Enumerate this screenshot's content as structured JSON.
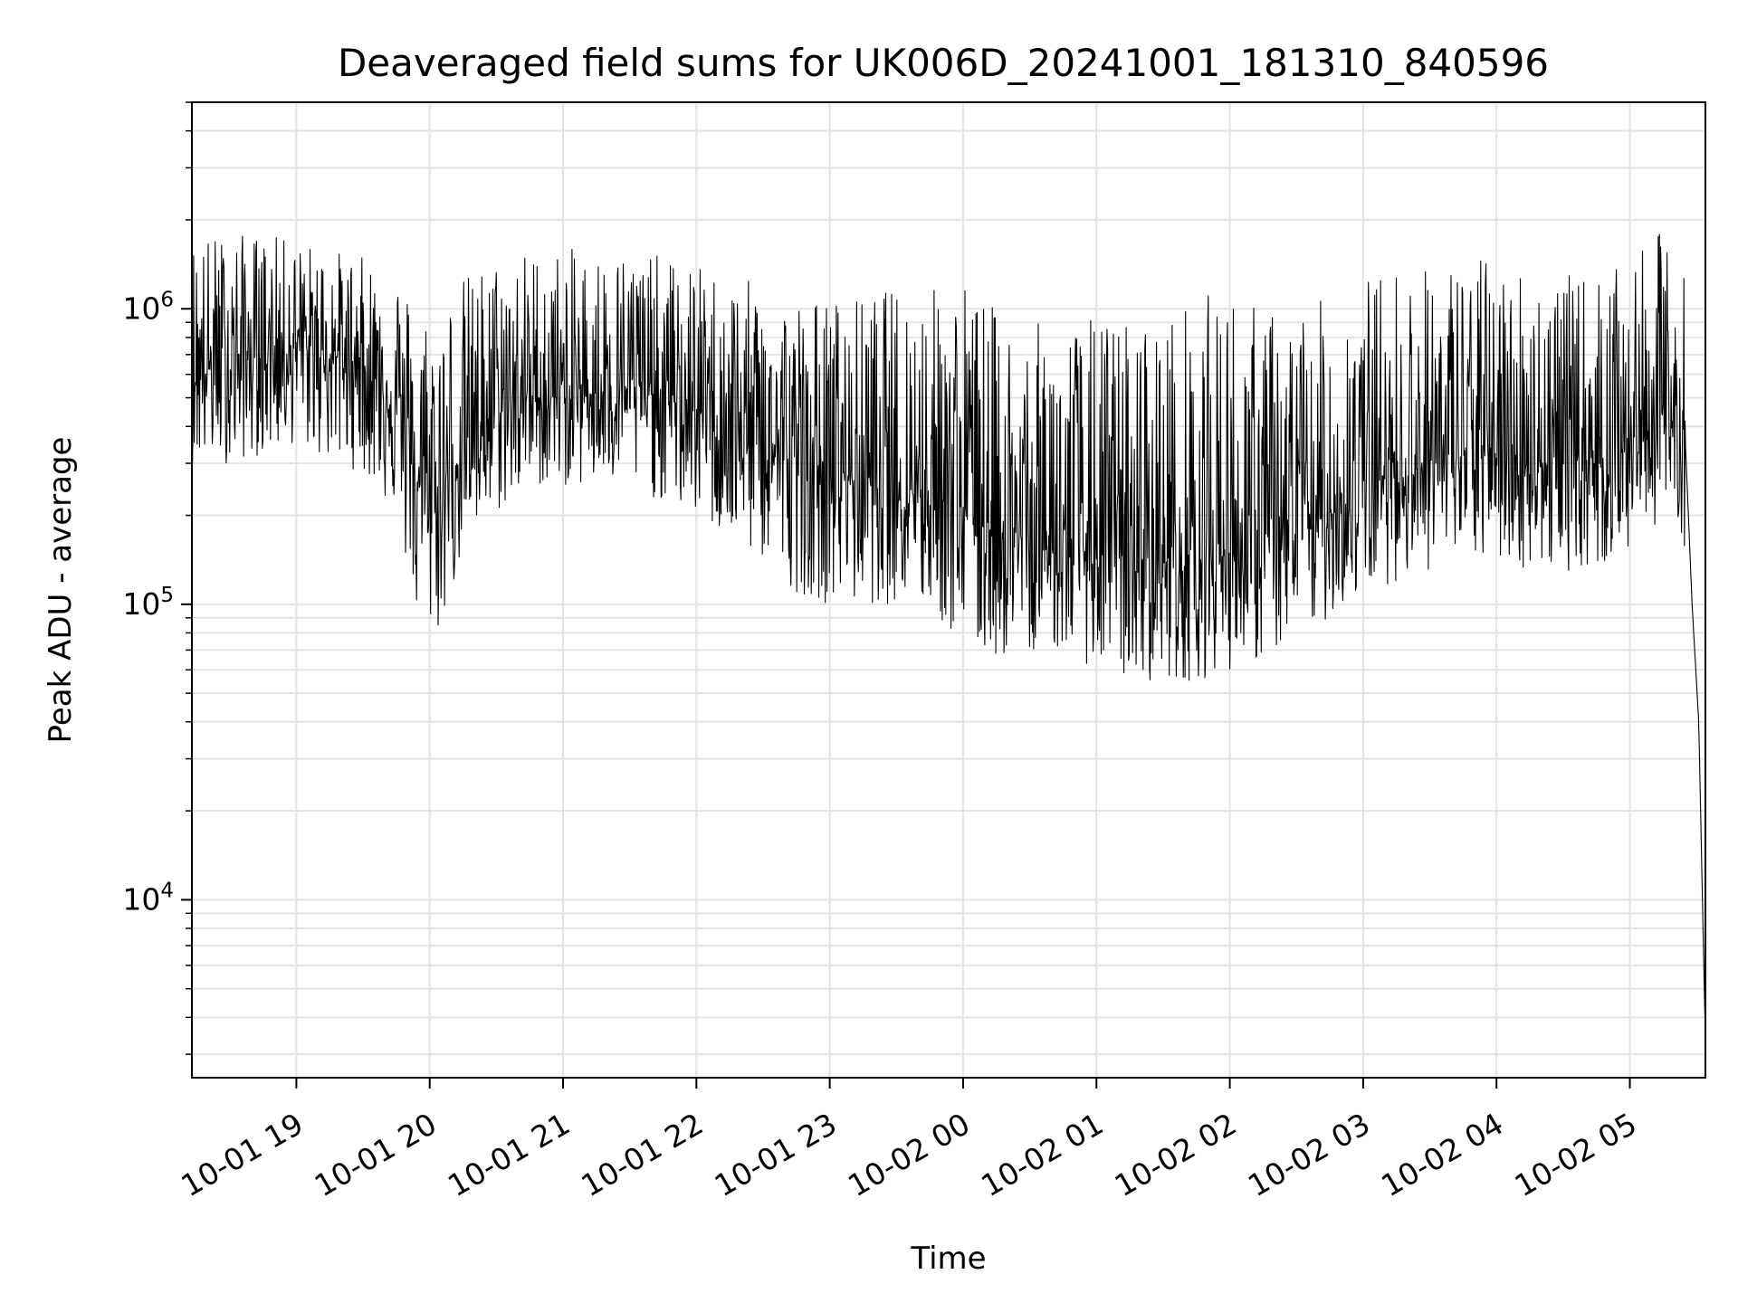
{
  "chart_data": {
    "type": "line",
    "title": "Deaveraged field sums for UK006D_20241001_181310_840596",
    "xlabel": "Time",
    "ylabel": "Peak ADU - average",
    "yscale": "log",
    "ylim": [
      2500,
      5000000
    ],
    "xlim": [
      "2024-10-01 18:13",
      "2024-10-02 05:34"
    ],
    "x_ticks": [
      {
        "t": "2024-10-01 19:00",
        "label": "10-01 19"
      },
      {
        "t": "2024-10-01 20:00",
        "label": "10-01 20"
      },
      {
        "t": "2024-10-01 21:00",
        "label": "10-01 21"
      },
      {
        "t": "2024-10-01 22:00",
        "label": "10-01 22"
      },
      {
        "t": "2024-10-01 23:00",
        "label": "10-01 23"
      },
      {
        "t": "2024-10-02 00:00",
        "label": "10-02 00"
      },
      {
        "t": "2024-10-02 01:00",
        "label": "10-02 01"
      },
      {
        "t": "2024-10-02 02:00",
        "label": "10-02 02"
      },
      {
        "t": "2024-10-02 03:00",
        "label": "10-02 03"
      },
      {
        "t": "2024-10-02 04:00",
        "label": "10-02 04"
      },
      {
        "t": "2024-10-02 05:00",
        "label": "10-02 05"
      }
    ],
    "y_ticks": [
      {
        "value": 10000,
        "base": "10",
        "exp": "4"
      },
      {
        "value": 100000,
        "base": "10",
        "exp": "5"
      },
      {
        "value": 1000000,
        "base": "10",
        "exp": "6"
      }
    ],
    "grid": true,
    "series": [
      {
        "color": "#000000",
        "x": [
          "2024-10-01 18:13",
          "2024-10-01 18:30",
          "2024-10-01 18:45",
          "2024-10-01 19:00",
          "2024-10-01 19:15",
          "2024-10-01 19:30",
          "2024-10-01 19:45",
          "2024-10-01 19:55",
          "2024-10-01 20:05",
          "2024-10-01 20:15",
          "2024-10-01 20:30",
          "2024-10-01 20:45",
          "2024-10-01 21:00",
          "2024-10-01 21:15",
          "2024-10-01 21:30",
          "2024-10-01 21:45",
          "2024-10-01 22:00",
          "2024-10-01 22:15",
          "2024-10-01 22:30",
          "2024-10-01 22:45",
          "2024-10-01 23:00",
          "2024-10-01 23:15",
          "2024-10-01 23:30",
          "2024-10-01 23:45",
          "2024-10-02 00:00",
          "2024-10-02 00:15",
          "2024-10-02 00:30",
          "2024-10-02 00:45",
          "2024-10-02 01:00",
          "2024-10-02 01:15",
          "2024-10-02 01:30",
          "2024-10-02 01:45",
          "2024-10-02 02:00",
          "2024-10-02 02:15",
          "2024-10-02 02:30",
          "2024-10-02 02:45",
          "2024-10-02 03:00",
          "2024-10-02 03:15",
          "2024-10-02 03:30",
          "2024-10-02 03:45",
          "2024-10-02 04:00",
          "2024-10-02 04:15",
          "2024-10-02 04:30",
          "2024-10-02 04:45",
          "2024-10-02 05:00",
          "2024-10-02 05:15",
          "2024-10-02 05:25",
          "2024-10-02 05:28",
          "2024-10-02 05:31",
          "2024-10-02 05:34"
        ],
        "y": [
          600000,
          650000,
          700000,
          750000,
          700000,
          650000,
          500000,
          250000,
          220000,
          350000,
          450000,
          500000,
          500000,
          520000,
          550000,
          500000,
          450000,
          400000,
          350000,
          300000,
          280000,
          270000,
          260000,
          250000,
          220000,
          180000,
          160000,
          150000,
          150000,
          140000,
          140000,
          140000,
          150000,
          160000,
          180000,
          200000,
          250000,
          280000,
          300000,
          320000,
          320000,
          300000,
          300000,
          310000,
          350000,
          450000,
          350000,
          100000,
          40000,
          3300
        ],
        "envelope_low": [
          300000,
          300000,
          320000,
          350000,
          300000,
          280000,
          200000,
          80000,
          80000,
          150000,
          200000,
          250000,
          250000,
          250000,
          250000,
          220000,
          200000,
          160000,
          140000,
          110000,
          100000,
          100000,
          100000,
          95000,
          70000,
          65000,
          70000,
          70000,
          60000,
          55000,
          55000,
          55000,
          60000,
          65000,
          75000,
          90000,
          110000,
          120000,
          130000,
          140000,
          140000,
          130000,
          130000,
          130000,
          150000,
          200000,
          150000,
          50000,
          30000,
          3300
        ],
        "envelope_high": [
          1800000,
          1800000,
          1800000,
          1700000,
          1600000,
          1500000,
          1400000,
          1000000,
          1100000,
          1300000,
          1500000,
          1600000,
          1600000,
          1600000,
          1600000,
          1500000,
          1400000,
          1300000,
          1200000,
          1100000,
          1100000,
          1100000,
          1200000,
          1200000,
          1300000,
          1000000,
          900000,
          900000,
          950000,
          950000,
          950000,
          1100000,
          1200000,
          1000000,
          1000000,
          1100000,
          1300000,
          1400000,
          1400000,
          1500000,
          1500000,
          1400000,
          1300000,
          1300000,
          1400000,
          1900000,
          1300000,
          200000,
          70000,
          3300
        ]
      }
    ]
  }
}
